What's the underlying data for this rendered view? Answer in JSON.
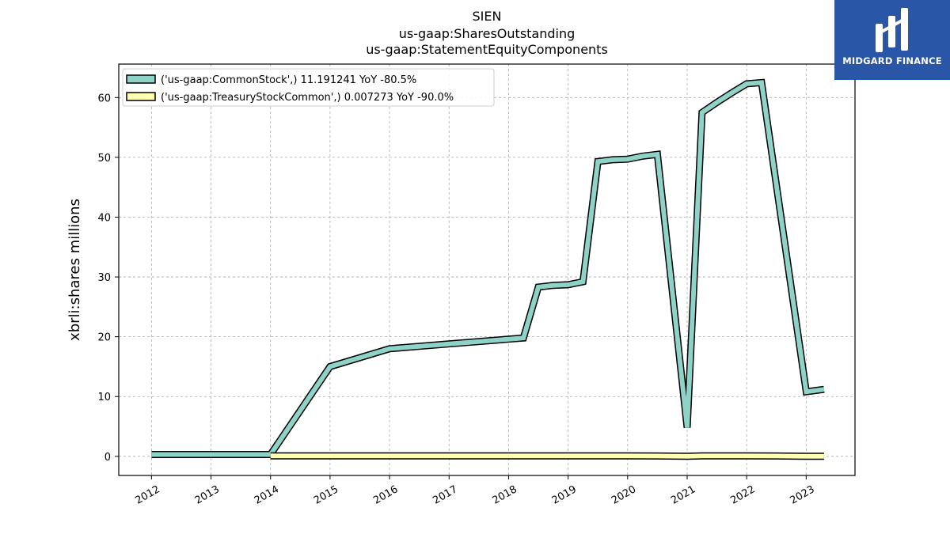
{
  "chart_data": {
    "type": "line",
    "title_lines": [
      "SIEN",
      "us-gaap:SharesOutstanding",
      "us-gaap:StatementEquityComponents"
    ],
    "ylabel": "xbrli:shares millions",
    "xlabel": "",
    "x_tick_labels": [
      "2012",
      "2013",
      "2014",
      "2015",
      "2016",
      "2017",
      "2018",
      "2019",
      "2020",
      "2021",
      "2022",
      "2023"
    ],
    "y_tick_labels": [
      "0",
      "10",
      "20",
      "30",
      "40",
      "50",
      "60"
    ],
    "ylim": [
      -3.2,
      65.6
    ],
    "xlim": [
      2011.45,
      2023.82
    ],
    "grid": true,
    "legend_position": "top-left",
    "series": [
      {
        "name": "('us-gaap:CommonStock',) 11.191241 YoY -80.5%",
        "color": "#8dd3c7",
        "x": [
          2012.0,
          2013.0,
          2014.0,
          2015.0,
          2016.0,
          2017.0,
          2018.0,
          2018.25,
          2018.5,
          2018.75,
          2019.0,
          2019.25,
          2019.5,
          2019.75,
          2020.0,
          2020.25,
          2020.5,
          2021.0,
          2021.25,
          2021.5,
          2021.75,
          2022.0,
          2022.25,
          2023.0,
          2023.3
        ],
        "y": [
          0.3,
          0.3,
          0.3,
          15.0,
          18.0,
          18.8,
          19.6,
          19.8,
          28.3,
          28.6,
          28.7,
          29.2,
          49.3,
          49.6,
          49.7,
          50.2,
          50.5,
          4.8,
          57.5,
          59.2,
          60.8,
          62.3,
          62.5,
          10.8,
          11.2
        ]
      },
      {
        "name": "('us-gaap:TreasuryStockCommon',) 0.007273 YoY -90.0%",
        "color": "#ffffb3",
        "x": [
          2014.0,
          2015.0,
          2016.0,
          2017.0,
          2018.0,
          2019.0,
          2020.0,
          2020.5,
          2021.0,
          2021.25,
          2022.0,
          2022.5,
          2023.0,
          2023.3
        ],
        "y": [
          0.07,
          0.07,
          0.07,
          0.07,
          0.07,
          0.07,
          0.07,
          0.06,
          0.005,
          0.07,
          0.07,
          0.06,
          0.01,
          0.007
        ]
      }
    ]
  },
  "logo": {
    "text": "MIDGARD FINANCE",
    "color": "#2a56a8"
  }
}
